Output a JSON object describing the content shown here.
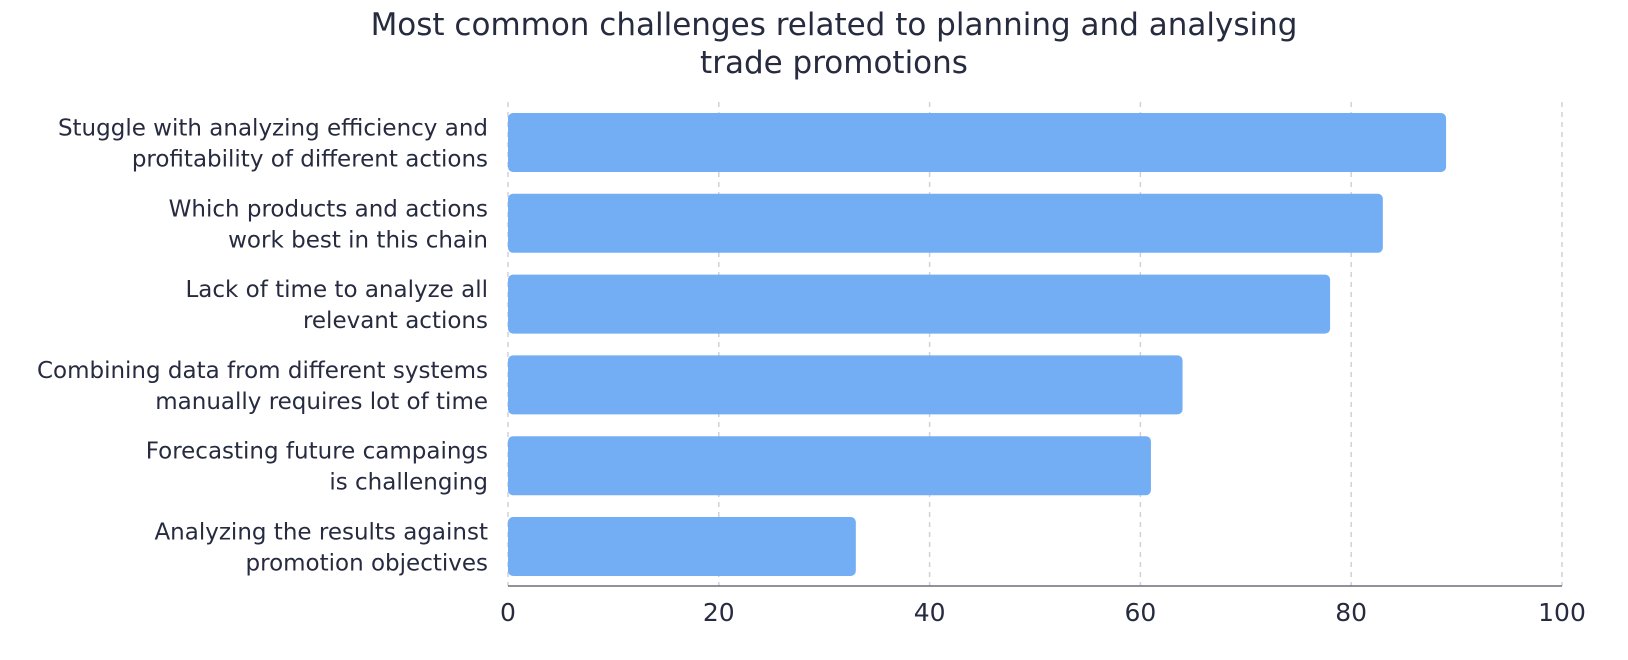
{
  "chart_data": {
    "type": "bar",
    "orientation": "horizontal",
    "title_lines": [
      "Most common challenges related to planning and analysing",
      "trade promotions"
    ],
    "categories": [
      [
        "Stuggle with analyzing efficiency and",
        "profitability of different actions"
      ],
      [
        "Which products and actions",
        "work best in this chain"
      ],
      [
        "Lack of time to analyze all",
        "relevant actions"
      ],
      [
        "Combining data from different systems",
        "manually requires lot of time"
      ],
      [
        "Forecasting future campaings",
        "is challenging"
      ],
      [
        "Analyzing the results against",
        "promotion objectives"
      ]
    ],
    "values": [
      89,
      83,
      78,
      64,
      61,
      33
    ],
    "xlim": [
      0,
      100
    ],
    "x_ticks": [
      "0",
      "20",
      "40",
      "60",
      "80",
      "100"
    ],
    "grid": true,
    "legend": "none",
    "bar_color": "#73aef5"
  }
}
